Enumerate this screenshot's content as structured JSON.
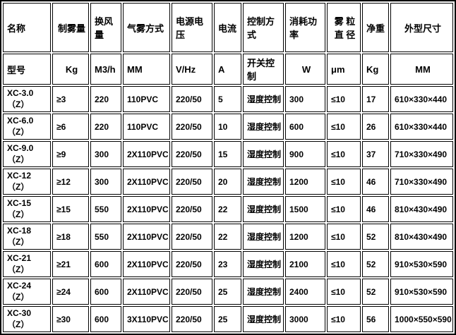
{
  "colors": {
    "border": "#000000",
    "background": "#ffffff",
    "text": "#000000"
  },
  "table": {
    "header_row1": [
      "名称",
      "制雾量",
      "换风量",
      "气雾方式",
      "电源电压",
      "电流",
      "控制方式",
      "消耗功\n率",
      "雾 粒\n直 径",
      "净重",
      "外型尺寸"
    ],
    "header_row2": [
      "型号",
      "Kg",
      "M3/h",
      "MM",
      "V/Hz",
      "A",
      "开关控制",
      "W",
      "μm",
      "Kg",
      "MM"
    ],
    "rows": [
      [
        "XC-3.0（Z）",
        "≥3",
        "220",
        "110PVC",
        "220/50",
        "5",
        "湿度控制",
        "300",
        "≤10",
        "17",
        "610×330×440"
      ],
      [
        "XC-6.0（Z）",
        "≥6",
        "220",
        "110PVC",
        "220/50",
        "10",
        "湿度控制",
        "600",
        "≤10",
        "26",
        "610×330×440"
      ],
      [
        "XC-9.0（Z）",
        "≥9",
        "300",
        "2X110PVC",
        "220/50",
        "15",
        "湿度控制",
        "900",
        "≤10",
        "37",
        "710×330×490"
      ],
      [
        "XC-12（Z）",
        "≥12",
        "300",
        "2X110PVC",
        "220/50",
        "20",
        "湿度控制",
        "1200",
        "≤10",
        "46",
        "710×330×490"
      ],
      [
        "XC-15（Z）",
        "≥15",
        "550",
        "2X110PVC",
        "220/50",
        "22",
        "湿度控制",
        "1500",
        "≤10",
        "46",
        "810×430×490"
      ],
      [
        "XC-18（Z）",
        "≥18",
        "550",
        "2X110PVC",
        "220/50",
        "22",
        "湿度控制",
        "1200",
        "≤10",
        "52",
        "810×430×490"
      ],
      [
        "XC-21（Z）",
        "≥21",
        "600",
        "2X110PVC",
        "220/50",
        "23",
        "湿度控制",
        "2100",
        "≤10",
        "52",
        "910×530×590"
      ],
      [
        "XC-24（Z）",
        "≥24",
        "600",
        "2X110PVC",
        "220/50",
        "25",
        "湿度控制",
        "2400",
        "≤10",
        "52",
        "910×530×590"
      ],
      [
        "XC-30（Z）",
        "≥30",
        "600",
        "3X110PVC",
        "220/50",
        "25",
        "湿度控制",
        "3000",
        "≤10",
        "56",
        "1000×550×590"
      ]
    ]
  }
}
